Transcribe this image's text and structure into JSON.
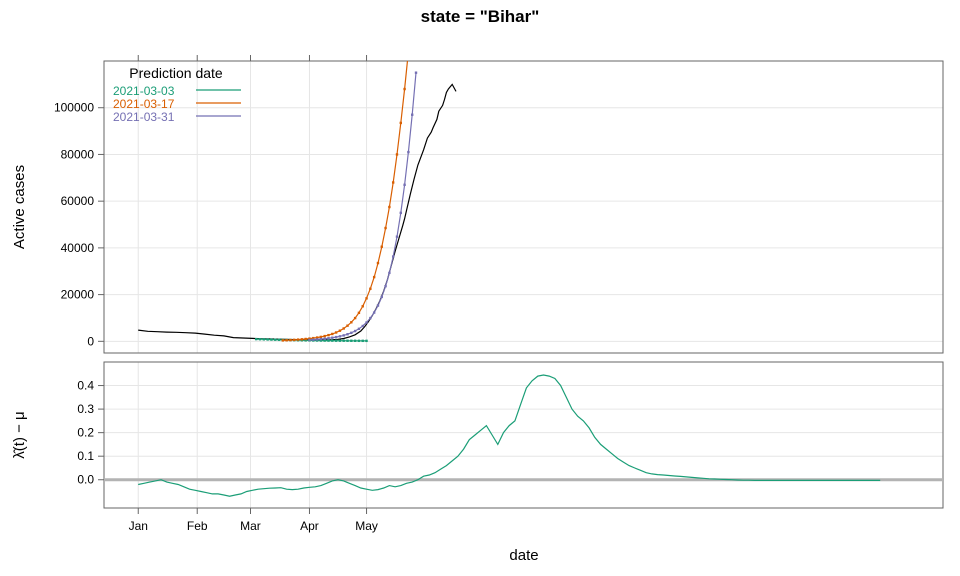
{
  "strip_title": "state = \"Bihar\"",
  "xlabel": "date",
  "x_tick_labels": [
    "Jan",
    "Feb",
    "Mar",
    "Apr",
    "May"
  ],
  "colors": {
    "observed": "#000000",
    "p0303": "#1b9e77",
    "p0317": "#d95f02",
    "p0331": "#7570b3",
    "lambda": "#1b9e77",
    "zero_line": "#b3b3b3",
    "grid": "#e6e6e6",
    "frame": "#666666"
  },
  "chart_data": [
    {
      "type": "line",
      "title": "state = \"Bihar\"",
      "xlabel": "",
      "ylabel": "Active cases",
      "x_unit": "day of 2021 (0 = Jan 1)",
      "xlim": [
        -18,
        423
      ],
      "ylim": [
        -5000,
        120000
      ],
      "yticks": [
        0,
        20000,
        40000,
        60000,
        80000,
        100000
      ],
      "ytick_labels": [
        "0",
        "20000",
        "40000",
        "60000",
        "80000",
        "100000"
      ],
      "grid": true,
      "legend": {
        "title": "Prediction date",
        "placement": "top-left",
        "entries": [
          "2021-03-03",
          "2021-03-17",
          "2021-03-31"
        ]
      },
      "series": [
        {
          "name": "observed",
          "x": [
            0,
            5,
            10,
            15,
            20,
            25,
            30,
            35,
            40,
            45,
            50,
            55,
            60,
            65,
            70,
            75,
            80,
            85,
            90,
            93,
            96,
            99,
            102,
            105,
            108,
            111,
            114,
            117,
            119,
            121,
            123,
            125,
            127,
            129,
            131,
            133,
            135,
            137,
            139,
            140,
            141,
            143,
            145,
            147,
            150,
            152,
            154,
            155,
            157,
            158,
            160,
            161,
            162,
            163,
            165,
            167
          ],
          "y": [
            4800,
            4300,
            4100,
            3950,
            3850,
            3700,
            3500,
            3100,
            2600,
            2300,
            1600,
            1400,
            1250,
            1100,
            1000,
            900,
            800,
            700,
            640,
            600,
            580,
            620,
            700,
            850,
            1200,
            1900,
            2800,
            4400,
            6200,
            8400,
            11000,
            14000,
            17400,
            21500,
            26500,
            32500,
            38500,
            44000,
            49500,
            52500,
            56000,
            63000,
            69500,
            75500,
            82000,
            87000,
            89500,
            91500,
            95000,
            98500,
            101000,
            103500,
            106500,
            108000,
            110000,
            107000
          ]
        },
        {
          "name": "2021-03-03",
          "x": [
            62,
            64,
            66,
            68,
            70,
            72,
            74,
            76,
            78,
            80,
            82,
            84,
            86,
            88,
            90,
            92,
            94,
            96,
            98,
            100,
            102,
            104,
            106,
            108,
            110,
            112,
            114,
            116,
            118,
            120
          ],
          "y": [
            950,
            900,
            850,
            800,
            750,
            700,
            650,
            610,
            570,
            530,
            500,
            470,
            440,
            410,
            390,
            370,
            350,
            330,
            315,
            300,
            285,
            270,
            260,
            250,
            240,
            230,
            220,
            210,
            205,
            200
          ]
        },
        {
          "name": "2021-03-17",
          "x": [
            76,
            78,
            80,
            82,
            84,
            86,
            88,
            90,
            92,
            94,
            96,
            98,
            100,
            102,
            104,
            106,
            108,
            110,
            112,
            114,
            116,
            118,
            120,
            122,
            124,
            126,
            128,
            130,
            132,
            134,
            136,
            138,
            140,
            142,
            144
          ],
          "y": [
            400,
            460,
            540,
            630,
            740,
            860,
            1000,
            1170,
            1370,
            1610,
            1890,
            2240,
            2650,
            3150,
            3780,
            4550,
            5500,
            6700,
            8150,
            9950,
            12200,
            15000,
            18400,
            22500,
            27500,
            33500,
            40500,
            48500,
            57500,
            68000,
            80000,
            93500,
            108000,
            124000,
            140000
          ]
        },
        {
          "name": "2021-03-31",
          "x": [
            90,
            92,
            94,
            96,
            98,
            100,
            102,
            104,
            106,
            108,
            110,
            112,
            114,
            116,
            118,
            120,
            122,
            124,
            126,
            128,
            130,
            132,
            134,
            136,
            138,
            140,
            142,
            144,
            146
          ],
          "y": [
            600,
            700,
            820,
            960,
            1120,
            1310,
            1540,
            1810,
            2140,
            2540,
            3030,
            3640,
            4400,
            5350,
            6550,
            8050,
            9950,
            12300,
            15300,
            19000,
            23600,
            29300,
            36300,
            44800,
            55000,
            67000,
            81000,
            97000,
            115000
          ]
        }
      ]
    },
    {
      "type": "line",
      "ylabel": "λ̂(t) − μ",
      "xlabel": "date",
      "x_unit": "day of 2021 (0 = Jan 1)",
      "xlim": [
        -18,
        423
      ],
      "ylim": [
        -0.12,
        0.5
      ],
      "yticks": [
        0.0,
        0.1,
        0.2,
        0.3,
        0.4
      ],
      "ytick_labels": [
        "0.0",
        "0.1",
        "0.2",
        "0.3",
        "0.4"
      ],
      "hline": 0,
      "grid": true,
      "series": [
        {
          "name": "lambda",
          "x": [
            0,
            3,
            6,
            9,
            12,
            15,
            18,
            21,
            24,
            27,
            30,
            33,
            36,
            39,
            42,
            45,
            48,
            51,
            54,
            57,
            60,
            63,
            66,
            69,
            72,
            75,
            78,
            81,
            84,
            87,
            90,
            93,
            96,
            99,
            102,
            105,
            108,
            111,
            114,
            117,
            120,
            123,
            126,
            129,
            132,
            135,
            138,
            141,
            144,
            147,
            150,
            153,
            156,
            159,
            162,
            165,
            168,
            171,
            174,
            177,
            180,
            183,
            186,
            189,
            192,
            195,
            198,
            201,
            204,
            207,
            210,
            213,
            216,
            219,
            222,
            225,
            228,
            231,
            234,
            237,
            240,
            243,
            246,
            249,
            252,
            255,
            258,
            261,
            264,
            267,
            270,
            273,
            276,
            279,
            282,
            285,
            288,
            291,
            294,
            297,
            300,
            303,
            306,
            309,
            312,
            315,
            318,
            321,
            324,
            327,
            330,
            333,
            336,
            339,
            342,
            345,
            348,
            351,
            354,
            357,
            360,
            363,
            366,
            369,
            372,
            375,
            378,
            381,
            384,
            387,
            390
          ],
          "y": [
            -0.02,
            -0.015,
            -0.01,
            -0.005,
            0.0,
            -0.01,
            -0.015,
            -0.02,
            -0.03,
            -0.04,
            -0.045,
            -0.05,
            -0.055,
            -0.06,
            -0.06,
            -0.065,
            -0.07,
            -0.065,
            -0.06,
            -0.05,
            -0.045,
            -0.04,
            -0.038,
            -0.036,
            -0.035,
            -0.034,
            -0.04,
            -0.042,
            -0.04,
            -0.035,
            -0.032,
            -0.03,
            -0.025,
            -0.015,
            -0.005,
            0.0,
            -0.005,
            -0.015,
            -0.025,
            -0.035,
            -0.04,
            -0.045,
            -0.042,
            -0.035,
            -0.025,
            -0.03,
            -0.025,
            -0.015,
            -0.01,
            0.0,
            0.015,
            0.02,
            0.03,
            0.045,
            0.06,
            0.08,
            0.1,
            0.13,
            0.17,
            0.19,
            0.21,
            0.23,
            0.19,
            0.15,
            0.2,
            0.23,
            0.25,
            0.32,
            0.39,
            0.42,
            0.44,
            0.445,
            0.44,
            0.43,
            0.4,
            0.35,
            0.3,
            0.27,
            0.25,
            0.22,
            0.18,
            0.15,
            0.13,
            0.11,
            0.09,
            0.075,
            0.06,
            0.05,
            0.04,
            0.03,
            0.025,
            0.022,
            0.02,
            0.018,
            0.016,
            0.014,
            0.012,
            0.01,
            0.008,
            0.006,
            0.004,
            0.003,
            0.002,
            0.001,
            0.0,
            -0.001,
            -0.002,
            -0.002,
            -0.003,
            -0.003,
            -0.003,
            -0.003,
            -0.003,
            -0.003,
            -0.003,
            -0.003,
            -0.003,
            -0.003,
            -0.003,
            -0.003,
            -0.003,
            -0.003,
            -0.003,
            -0.003,
            -0.003,
            -0.003,
            -0.003,
            -0.003,
            -0.003,
            -0.003,
            -0.003
          ]
        }
      ]
    }
  ]
}
